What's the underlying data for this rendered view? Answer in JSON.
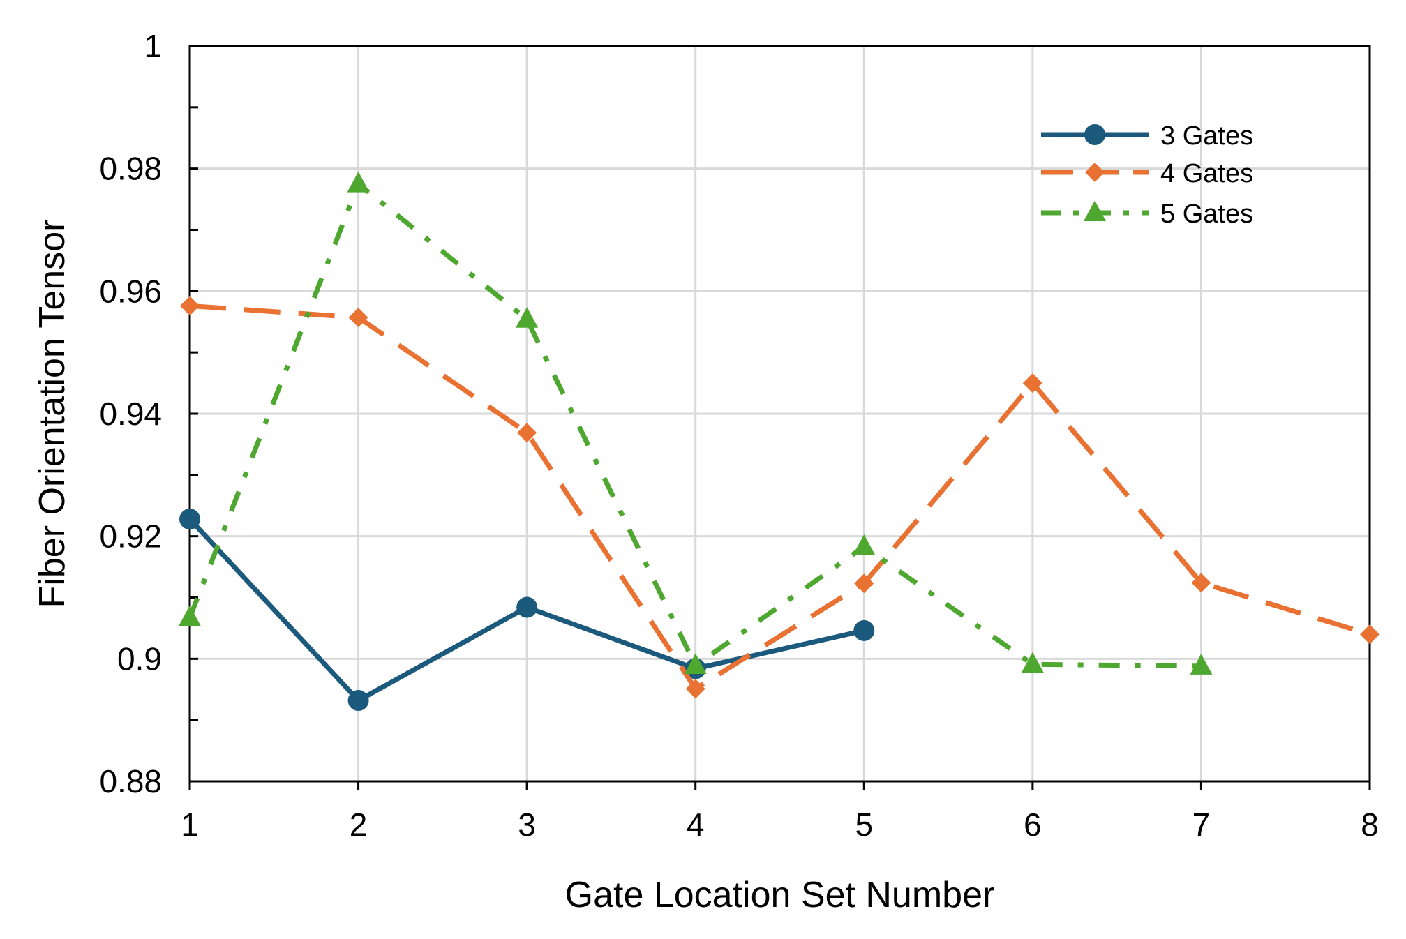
{
  "chart_data": {
    "type": "line",
    "title": "",
    "xlabel": "Gate Location Set Number",
    "ylabel": "Fiber Orientation Tensor",
    "xlim": [
      1,
      8
    ],
    "ylim": [
      0.88,
      1
    ],
    "x_ticks": [
      1,
      2,
      3,
      4,
      5,
      6,
      7,
      8
    ],
    "y_ticks": [
      0.88,
      0.9,
      0.92,
      0.94,
      0.96,
      0.98,
      1
    ],
    "x_tick_labels": [
      "1",
      "2",
      "3",
      "4",
      "5",
      "6",
      "7",
      "8"
    ],
    "y_tick_labels": [
      "0.88",
      "0.9",
      "0.92",
      "0.94",
      "0.96",
      "0.98",
      "1"
    ],
    "grid": true,
    "legend_position": "top-right",
    "series": [
      {
        "name": "3 Gates",
        "color": "#1c5a7d",
        "marker": "circle",
        "line_style": "solid",
        "x": [
          1,
          2,
          3,
          4,
          5
        ],
        "values": [
          0.9228,
          0.8932,
          0.9084,
          0.8984,
          0.9046
        ]
      },
      {
        "name": "4 Gates",
        "color": "#e97132",
        "marker": "diamond",
        "line_style": "long-dash",
        "x": [
          1,
          2,
          3,
          4,
          5,
          6,
          7,
          8
        ],
        "values": [
          0.9576,
          0.9557,
          0.9369,
          0.8951,
          0.9123,
          0.945,
          0.9124,
          0.904
        ]
      },
      {
        "name": "5 Gates",
        "color": "#4ea72e",
        "marker": "triangle",
        "line_style": "dash-dot",
        "x": [
          1,
          2,
          3,
          4,
          5,
          6,
          7
        ],
        "values": [
          0.9067,
          0.9775,
          0.9554,
          0.8989,
          0.9183,
          0.8991,
          0.8988
        ]
      }
    ]
  }
}
